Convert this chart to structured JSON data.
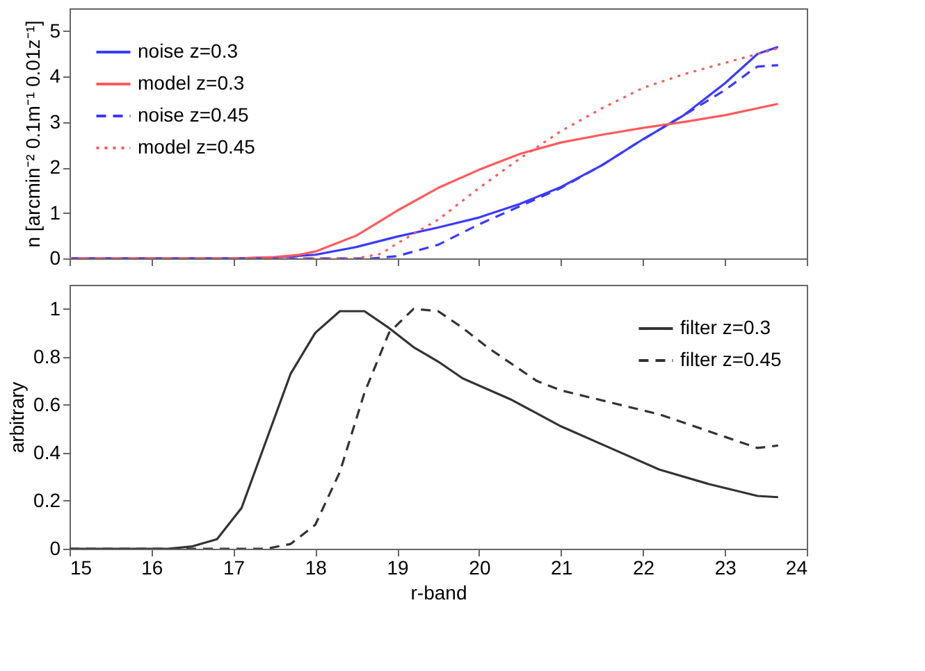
{
  "chart_data": [
    {
      "type": "line",
      "ylabel": "n [arcmin⁻² 0.1m⁻¹ 0.01z⁻¹]",
      "xlim": [
        15,
        24
      ],
      "xticks": [
        15,
        16,
        17,
        18,
        19,
        20,
        21,
        22,
        23,
        24
      ],
      "ylim": [
        0,
        5.5
      ],
      "yticks": [
        0,
        1,
        2,
        3,
        4,
        5
      ],
      "tick_labels": "y",
      "grid": false,
      "legend": "top left",
      "series": [
        {
          "name": "noise z=0.3",
          "color": "#3a3aff",
          "line_style": "solid",
          "x": [
            15,
            17,
            17.5,
            18,
            18.5,
            19,
            19.5,
            20,
            20.5,
            21,
            21.5,
            22,
            22.5,
            23,
            23.4,
            23.65
          ],
          "values": [
            0,
            0,
            0.02,
            0.08,
            0.25,
            0.48,
            0.68,
            0.9,
            1.2,
            1.57,
            2.05,
            2.62,
            3.15,
            3.85,
            4.5,
            4.65
          ]
        },
        {
          "name": "model z=0.3",
          "color": "#ff5a5a",
          "line_style": "solid",
          "x": [
            15,
            17,
            17.5,
            17.8,
            18,
            18.5,
            19,
            19.5,
            20,
            20.5,
            21,
            21.5,
            22,
            22.5,
            23,
            23.65
          ],
          "values": [
            0,
            0,
            0.03,
            0.08,
            0.15,
            0.5,
            1.05,
            1.55,
            1.95,
            2.3,
            2.55,
            2.72,
            2.87,
            3.0,
            3.15,
            3.4
          ]
        },
        {
          "name": "noise z=0.45",
          "color": "#3a3aff",
          "line_style": "dashed",
          "x": [
            15,
            18.7,
            19,
            19.5,
            20,
            20.5,
            21,
            21.5,
            22,
            22.5,
            23,
            23.3,
            23.4,
            23.65
          ],
          "values": [
            0,
            0,
            0.05,
            0.3,
            0.75,
            1.15,
            1.55,
            2.05,
            2.62,
            3.15,
            3.7,
            4.1,
            4.22,
            4.25
          ]
        },
        {
          "name": "model z=0.45",
          "color": "#ff5a5a",
          "line_style": "dotted",
          "x": [
            15,
            18.5,
            18.8,
            19,
            19.5,
            20,
            20.5,
            21,
            21.5,
            22,
            22.5,
            23,
            23.65
          ],
          "values": [
            0,
            0,
            0.1,
            0.33,
            0.85,
            1.55,
            2.2,
            2.8,
            3.3,
            3.75,
            4.05,
            4.3,
            4.62
          ]
        }
      ]
    },
    {
      "type": "line",
      "xlabel": "r-band",
      "ylabel": "arbitrary",
      "xlim": [
        15,
        24
      ],
      "xticks": [
        15,
        16,
        17,
        18,
        19,
        20,
        21,
        22,
        23,
        24
      ],
      "ylim": [
        0,
        1.1
      ],
      "yticks": [
        0,
        0.2,
        0.4,
        0.6,
        0.8,
        1
      ],
      "grid": false,
      "legend": "top right",
      "series": [
        {
          "name": "filter z=0.3",
          "color": "#333333",
          "line_style": "solid",
          "x": [
            15,
            16.2,
            16.5,
            16.8,
            17.1,
            17.4,
            17.7,
            18.0,
            18.3,
            18.6,
            18.9,
            19.2,
            19.5,
            19.8,
            20.4,
            21,
            21.6,
            22.2,
            22.8,
            23.4,
            23.65
          ],
          "values": [
            0,
            0,
            0.01,
            0.04,
            0.17,
            0.45,
            0.73,
            0.9,
            0.99,
            0.99,
            0.92,
            0.84,
            0.78,
            0.71,
            0.62,
            0.51,
            0.42,
            0.33,
            0.27,
            0.22,
            0.215
          ]
        },
        {
          "name": "filter z=0.45",
          "color": "#333333",
          "line_style": "dashed",
          "x": [
            15,
            17.4,
            17.7,
            18.0,
            18.3,
            18.6,
            18.9,
            19.2,
            19.5,
            19.8,
            20.1,
            20.4,
            20.7,
            21,
            21.6,
            22.2,
            22.8,
            23.4,
            23.65
          ],
          "values": [
            0,
            0,
            0.02,
            0.1,
            0.32,
            0.65,
            0.9,
            1.0,
            0.99,
            0.92,
            0.84,
            0.77,
            0.7,
            0.66,
            0.61,
            0.56,
            0.49,
            0.42,
            0.43
          ]
        }
      ]
    }
  ]
}
